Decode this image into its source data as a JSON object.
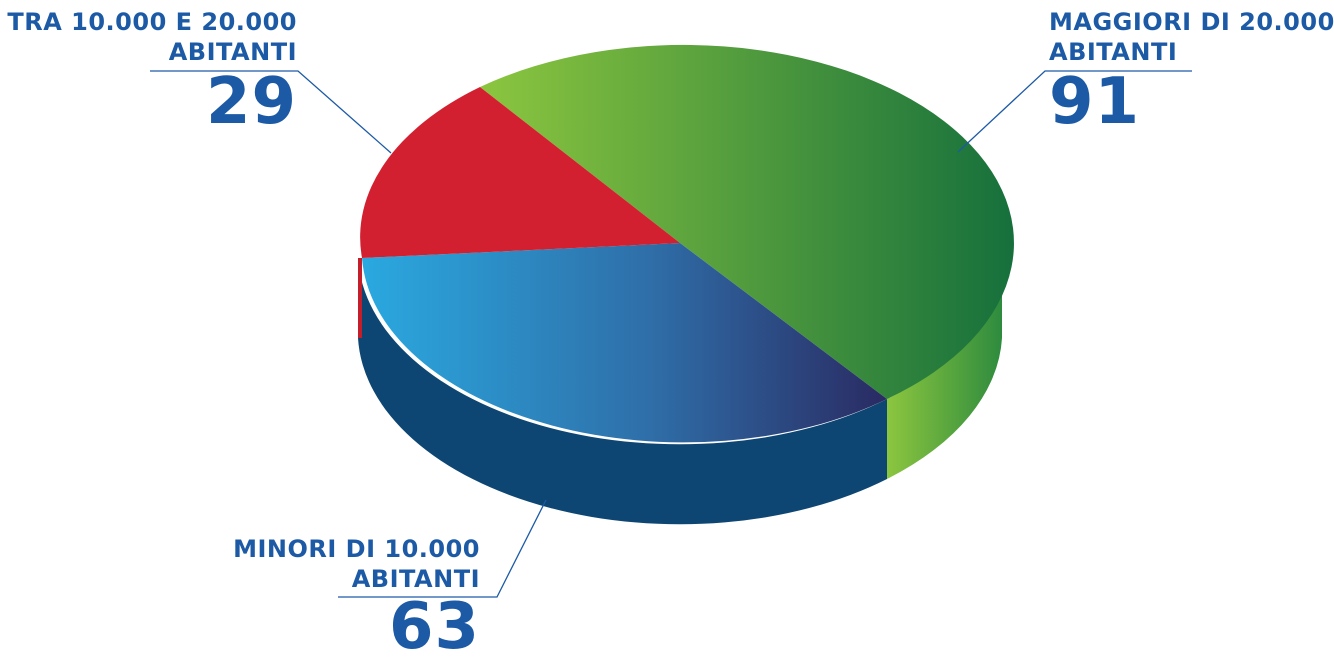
{
  "chart_data": {
    "type": "pie",
    "style": "3d",
    "slices": [
      {
        "label_line1": "MAGGIORI DI 20.000",
        "label_line2": "ABITANTI",
        "value": 91,
        "color_light": "#8cc63f",
        "color_dark": "#16703c"
      },
      {
        "label_line1": "MINORI DI 10.000",
        "label_line2": "ABITANTI",
        "value": 63,
        "color_light": "#2aa9e0",
        "color_dark": "#2a2a62"
      },
      {
        "label_line1": "TRA 10.000 E 20.000",
        "label_line2": "ABITANTI",
        "value": 29,
        "color_light": "#d32030",
        "color_dark": "#c41e2a"
      }
    ],
    "label_color": "#1c5aa6",
    "leader_color": "#1c5aa6"
  }
}
